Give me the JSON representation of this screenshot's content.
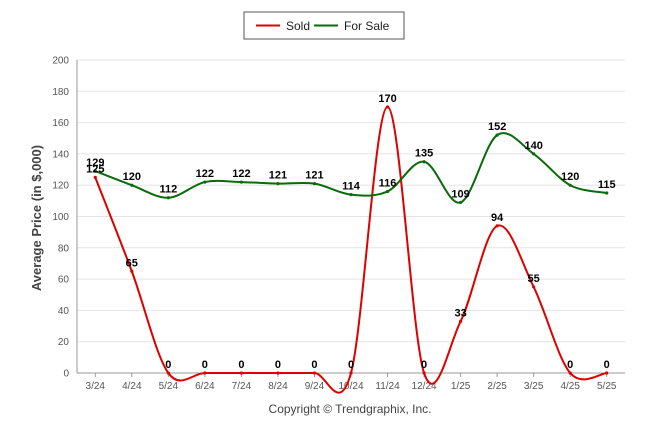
{
  "chart_data": {
    "type": "line",
    "title": "",
    "xlabel": "",
    "ylabel": "Average Price (in $,000)",
    "ylim": [
      0,
      200
    ],
    "yticks": [
      0,
      20,
      40,
      60,
      80,
      100,
      120,
      140,
      160,
      180,
      200
    ],
    "categories": [
      "3/24",
      "4/24",
      "5/24",
      "6/24",
      "7/24",
      "8/24",
      "9/24",
      "10/24",
      "11/24",
      "12/24",
      "1/25",
      "2/25",
      "3/25",
      "4/25",
      "5/25"
    ],
    "series": [
      {
        "name": "Sold",
        "color": "#dd0000",
        "values": [
          125,
          65,
          0,
          0,
          0,
          0,
          0,
          0,
          170,
          0,
          33,
          94,
          55,
          0,
          0
        ]
      },
      {
        "name": "For Sale",
        "color": "#0a6b0a",
        "values": [
          129,
          120,
          112,
          122,
          122,
          121,
          121,
          114,
          116,
          135,
          109,
          152,
          140,
          120,
          115
        ]
      }
    ],
    "grid": true,
    "legend_position": "top-center",
    "footer": "Copyright © Trendgraphix, Inc."
  }
}
